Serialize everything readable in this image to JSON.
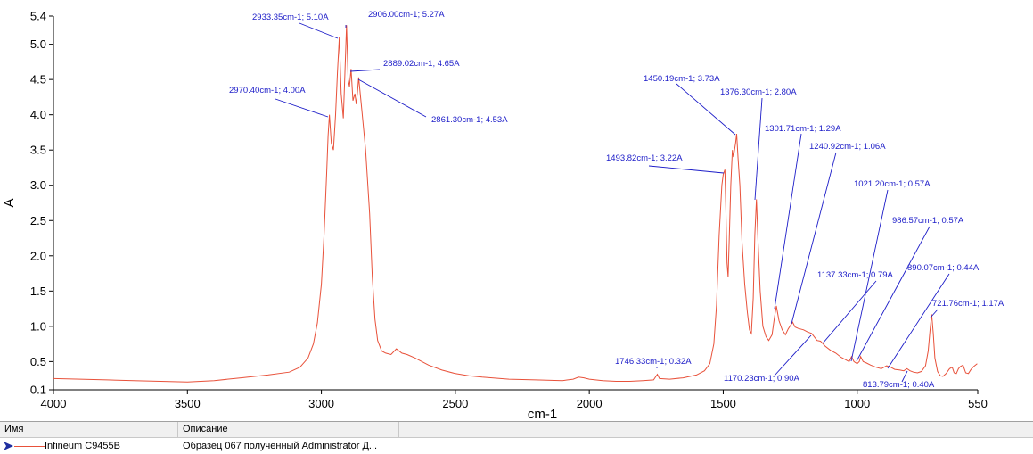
{
  "chart_data": {
    "type": "line",
    "xlabel": "cm-1",
    "ylabel": "A",
    "xlim": [
      4000,
      550
    ],
    "ylim": [
      0.1,
      5.4
    ],
    "x_reversed": true,
    "x_ticks": [
      4000,
      3500,
      3000,
      2500,
      2000,
      1500,
      1000,
      550
    ],
    "y_ticks": [
      0.1,
      0.5,
      1.0,
      1.5,
      2.0,
      2.5,
      3.0,
      3.5,
      4.0,
      4.5,
      5.0,
      5.4
    ],
    "y_tick_labels": [
      "0.1",
      "0.5",
      "1.0",
      "1.5",
      "2.0",
      "2.5",
      "3.0",
      "3.5",
      "4.0",
      "4.5",
      "5.0",
      "5.4"
    ],
    "grid": false,
    "series": [
      {
        "name": "Infineum C9455B",
        "color": "#e8513a",
        "points": [
          [
            4000,
            0.26
          ],
          [
            3900,
            0.25
          ],
          [
            3800,
            0.24
          ],
          [
            3700,
            0.23
          ],
          [
            3600,
            0.22
          ],
          [
            3500,
            0.21
          ],
          [
            3400,
            0.23
          ],
          [
            3300,
            0.27
          ],
          [
            3200,
            0.31
          ],
          [
            3120,
            0.35
          ],
          [
            3080,
            0.42
          ],
          [
            3050,
            0.55
          ],
          [
            3030,
            0.75
          ],
          [
            3015,
            1.05
          ],
          [
            3000,
            1.6
          ],
          [
            2990,
            2.3
          ],
          [
            2980,
            3.2
          ],
          [
            2975,
            3.7
          ],
          [
            2970,
            4.0
          ],
          [
            2963,
            3.6
          ],
          [
            2955,
            3.5
          ],
          [
            2947,
            4.0
          ],
          [
            2940,
            4.6
          ],
          [
            2933,
            5.1
          ],
          [
            2926,
            4.3
          ],
          [
            2918,
            3.95
          ],
          [
            2912,
            4.6
          ],
          [
            2906,
            5.27
          ],
          [
            2900,
            4.5
          ],
          [
            2895,
            4.4
          ],
          [
            2889,
            4.65
          ],
          [
            2882,
            4.2
          ],
          [
            2875,
            4.3
          ],
          [
            2870,
            4.15
          ],
          [
            2866,
            4.3
          ],
          [
            2861,
            4.53
          ],
          [
            2850,
            4.1
          ],
          [
            2835,
            3.5
          ],
          [
            2820,
            2.6
          ],
          [
            2810,
            1.7
          ],
          [
            2800,
            1.1
          ],
          [
            2790,
            0.8
          ],
          [
            2775,
            0.65
          ],
          [
            2760,
            0.62
          ],
          [
            2740,
            0.6
          ],
          [
            2720,
            0.68
          ],
          [
            2700,
            0.62
          ],
          [
            2680,
            0.6
          ],
          [
            2650,
            0.55
          ],
          [
            2600,
            0.45
          ],
          [
            2550,
            0.38
          ],
          [
            2500,
            0.33
          ],
          [
            2450,
            0.3
          ],
          [
            2400,
            0.28
          ],
          [
            2300,
            0.25
          ],
          [
            2200,
            0.24
          ],
          [
            2100,
            0.23
          ],
          [
            2060,
            0.25
          ],
          [
            2040,
            0.28
          ],
          [
            2020,
            0.27
          ],
          [
            2000,
            0.25
          ],
          [
            1950,
            0.23
          ],
          [
            1900,
            0.22
          ],
          [
            1850,
            0.22
          ],
          [
            1800,
            0.23
          ],
          [
            1760,
            0.24
          ],
          [
            1746,
            0.32
          ],
          [
            1738,
            0.26
          ],
          [
            1700,
            0.25
          ],
          [
            1650,
            0.27
          ],
          [
            1600,
            0.31
          ],
          [
            1570,
            0.37
          ],
          [
            1550,
            0.47
          ],
          [
            1535,
            0.75
          ],
          [
            1525,
            1.3
          ],
          [
            1515,
            2.3
          ],
          [
            1505,
            3.0
          ],
          [
            1500,
            3.15
          ],
          [
            1494,
            3.22
          ],
          [
            1490,
            2.6
          ],
          [
            1486,
            1.9
          ],
          [
            1482,
            1.7
          ],
          [
            1478,
            2.2
          ],
          [
            1472,
            3.0
          ],
          [
            1466,
            3.5
          ],
          [
            1462,
            3.4
          ],
          [
            1458,
            3.5
          ],
          [
            1454,
            3.6
          ],
          [
            1450,
            3.73
          ],
          [
            1445,
            3.4
          ],
          [
            1438,
            3.0
          ],
          [
            1430,
            2.2
          ],
          [
            1420,
            1.6
          ],
          [
            1410,
            1.2
          ],
          [
            1402,
            0.95
          ],
          [
            1395,
            0.9
          ],
          [
            1388,
            1.4
          ],
          [
            1382,
            2.3
          ],
          [
            1376,
            2.8
          ],
          [
            1370,
            2.2
          ],
          [
            1362,
            1.5
          ],
          [
            1352,
            1.0
          ],
          [
            1340,
            0.85
          ],
          [
            1330,
            0.8
          ],
          [
            1318,
            0.88
          ],
          [
            1310,
            1.1
          ],
          [
            1302,
            1.29
          ],
          [
            1292,
            1.08
          ],
          [
            1280,
            0.95
          ],
          [
            1268,
            0.88
          ],
          [
            1258,
            0.96
          ],
          [
            1248,
            1.02
          ],
          [
            1241,
            1.06
          ],
          [
            1232,
            0.99
          ],
          [
            1220,
            0.97
          ],
          [
            1200,
            0.95
          ],
          [
            1185,
            0.92
          ],
          [
            1170,
            0.9
          ],
          [
            1160,
            0.85
          ],
          [
            1150,
            0.8
          ],
          [
            1137,
            0.79
          ],
          [
            1120,
            0.72
          ],
          [
            1100,
            0.66
          ],
          [
            1080,
            0.62
          ],
          [
            1060,
            0.56
          ],
          [
            1040,
            0.52
          ],
          [
            1030,
            0.5
          ],
          [
            1021,
            0.57
          ],
          [
            1012,
            0.5
          ],
          [
            1000,
            0.47
          ],
          [
            992,
            0.5
          ],
          [
            987,
            0.57
          ],
          [
            978,
            0.5
          ],
          [
            965,
            0.48
          ],
          [
            950,
            0.45
          ],
          [
            930,
            0.42
          ],
          [
            910,
            0.4
          ],
          [
            890,
            0.44
          ],
          [
            875,
            0.42
          ],
          [
            860,
            0.39
          ],
          [
            840,
            0.38
          ],
          [
            826,
            0.37
          ],
          [
            814,
            0.4
          ],
          [
            803,
            0.37
          ],
          [
            790,
            0.35
          ],
          [
            775,
            0.34
          ],
          [
            760,
            0.36
          ],
          [
            745,
            0.44
          ],
          [
            735,
            0.65
          ],
          [
            728,
            0.95
          ],
          [
            722,
            1.17
          ],
          [
            716,
            0.9
          ],
          [
            710,
            0.55
          ],
          [
            700,
            0.36
          ],
          [
            690,
            0.3
          ],
          [
            680,
            0.29
          ],
          [
            668,
            0.33
          ],
          [
            655,
            0.4
          ],
          [
            645,
            0.42
          ],
          [
            638,
            0.34
          ],
          [
            630,
            0.33
          ],
          [
            622,
            0.4
          ],
          [
            615,
            0.43
          ],
          [
            605,
            0.45
          ],
          [
            595,
            0.34
          ],
          [
            585,
            0.33
          ],
          [
            575,
            0.39
          ],
          [
            565,
            0.43
          ],
          [
            552,
            0.47
          ]
        ]
      }
    ],
    "annotations": [
      {
        "text": "2970.40cm-1; 4.00A",
        "x": 2970.4,
        "y": 4.0
      },
      {
        "text": "2933.35cm-1; 5.10A",
        "x": 2933.35,
        "y": 5.1
      },
      {
        "text": "2906.00cm-1; 5.27A",
        "x": 2906.0,
        "y": 5.27
      },
      {
        "text": "2889.02cm-1; 4.65A",
        "x": 2889.02,
        "y": 4.65
      },
      {
        "text": "2861.30cm-1; 4.53A",
        "x": 2861.3,
        "y": 4.53
      },
      {
        "text": "1746.33cm-1; 0.32A",
        "x": 1746.33,
        "y": 0.32
      },
      {
        "text": "1493.82cm-1; 3.22A",
        "x": 1493.82,
        "y": 3.22
      },
      {
        "text": "1450.19cm-1; 3.73A",
        "x": 1450.19,
        "y": 3.73
      },
      {
        "text": "1376.30cm-1; 2.80A",
        "x": 1376.3,
        "y": 2.8
      },
      {
        "text": "1301.71cm-1; 1.29A",
        "x": 1301.71,
        "y": 1.29
      },
      {
        "text": "1240.92cm-1; 1.06A",
        "x": 1240.92,
        "y": 1.06
      },
      {
        "text": "1170.23cm-1; 0.90A",
        "x": 1170.23,
        "y": 0.9
      },
      {
        "text": "1137.33cm-1; 0.79A",
        "x": 1137.33,
        "y": 0.79
      },
      {
        "text": "1021.20cm-1; 0.57A",
        "x": 1021.2,
        "y": 0.57
      },
      {
        "text": "986.57cm-1; 0.57A",
        "x": 986.57,
        "y": 0.57
      },
      {
        "text": "890.07cm-1; 0.44A",
        "x": 890.07,
        "y": 0.44
      },
      {
        "text": "813.79cm-1; 0.40A",
        "x": 813.79,
        "y": 0.4
      },
      {
        "text": "721.76cm-1; 1.17A",
        "x": 721.76,
        "y": 1.17
      }
    ]
  },
  "legend": {
    "header_name": "Имя",
    "header_description": "Описание",
    "rows": [
      {
        "name": "Infineum C9455B",
        "description": "Образец 067 полученный Administrator Д..."
      }
    ]
  }
}
